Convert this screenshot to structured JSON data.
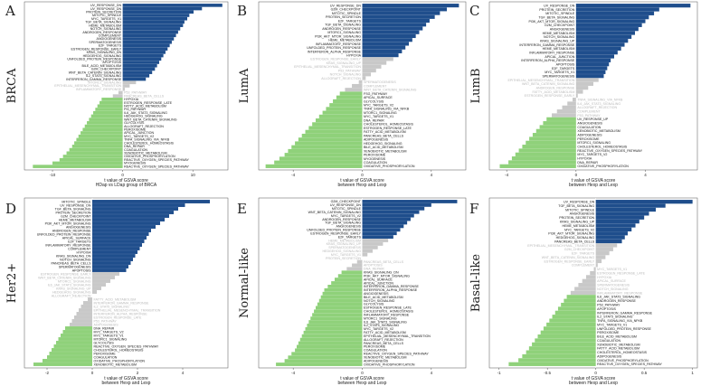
{
  "figure": {
    "colors": {
      "up": "#1f4e8c",
      "down": "#8fd17a",
      "neutral": "#c8c8c8",
      "neutral_text": "#b8b8b8"
    }
  },
  "chart_data": [
    {
      "type": "bar",
      "panel": "A",
      "side_label": "BRCA",
      "xlabel": "t value of GSVA score",
      "xlabel2": "HDap vs LDap group of BRCA",
      "xlim": [
        -14,
        15
      ],
      "xticks": [
        -10,
        0,
        10
      ],
      "up_labels": [
        "UV_RESPONSE_DN",
        "UV_RESPONSE_DN",
        "PROTEIN_SECRETION",
        "MITOTIC_SPINDLE",
        "MYC_TARGETS_V1",
        "TGF_BETA_SIGNALING",
        "HEME_METABOLISM",
        "NOTCH_SIGNALING",
        "ANDROGEN_RESPONSE",
        "COMPLEMENT",
        "ANGIOGENESIS",
        "SPERMATOGENESIS",
        "E2F_TARGETS",
        "ESTROGEN_RESPONSE_EARLY",
        "KRAS_SIGNALING_DN",
        "HEDGEHOG_SIGNALING",
        "UNFOLDED_PROTEIN_RESPONSE",
        "APOPTOSIS",
        "BILE_ACID_METABOLISM",
        "G2M_CHECKPOINT",
        "WNT_BETA_CATENIN_SIGNALING",
        "IL2_STAT5_SIGNALING",
        "INTERFERON_GAMMA_RESPONSE"
      ],
      "up_values": [
        14.2,
        11.3,
        10.1,
        9.5,
        9.2,
        8.8,
        8.6,
        8.2,
        7.9,
        7.6,
        7.3,
        7.0,
        6.7,
        6.4,
        6.1,
        5.8,
        5.5,
        5.2,
        4.9,
        4.6,
        4.2,
        3.8,
        3.3
      ],
      "neutral_labels": [
        "MTORC1_SIGNALING",
        "EPITHELIAL_MESENCHYMAL_TRANSITION",
        "INFLAMMATORY_RESPONSE",
        "P53_PATHWAY",
        "PANCREAS_BETA_CELLS"
      ],
      "neutral_values": [
        1.9,
        1.0,
        0.3,
        -0.6,
        -1.4
      ],
      "down_labels": [
        "HYPOXIA",
        "ESTROGEN_RESPONSE_LATE",
        "FATTY_ACID_METABOLISM",
        "PI3_PATHWAY",
        "IL6_JAK_STAT3_SIGNALING",
        "HEDGEHOG_SIGNALING",
        "WNT_BETA_CATENIN_SIGNALING",
        "GLYCOLYSIS",
        "ALLOGRAFT_REJECTION",
        "PEROXISOME",
        "APICAL_JUNCTION",
        "MYC_TARGETS_V2",
        "TNFA_SIGNALING_VIA_NFKB",
        "CHOLESTEROL_HOMEOSTASIS",
        "DNA_REPAIR",
        "COAGULATION",
        "XENOBIOTIC_METABOLISM",
        "OXIDATIVE_PHOSPHORYLATION",
        "REACTIVE_OXYGEN_SPECIES_PATHWAY",
        "MYOGENESIS",
        "REACTIVE_OXYGEN_SPECIES_PATHWAY"
      ],
      "down_values": [
        -3.0,
        -3.3,
        -3.6,
        -3.9,
        -4.2,
        -4.5,
        -4.8,
        -5.1,
        -5.4,
        -5.7,
        -6.0,
        -6.3,
        -6.6,
        -6.9,
        -7.2,
        -7.6,
        -8.0,
        -8.5,
        -9.0,
        -10.0,
        -12.8
      ]
    },
    {
      "type": "bar",
      "panel": "B",
      "side_label": "LumA",
      "xlabel": "t value of GSVA score",
      "xlabel2": "between Hexp and Lexp",
      "xlim": [
        -6,
        6
      ],
      "xticks": [
        -4,
        0,
        4
      ],
      "up_labels": [
        "UV_RESPONSE_DN",
        "G2M_CHECKPOINT",
        "MITOTIC_SPINDLE",
        "PROTEIN_SECRETION",
        "E2F_TARGETS",
        "TGF_BETA_SIGNALING",
        "ANDROGEN_RESPONSE",
        "MTORC1_SIGNALING",
        "PI3K_AKT_MTOR_SIGNALING",
        "HEME_METABOLISM",
        "INFLAMMATORY_RESPONSE",
        "UNFOLDED_PROTEIN_RESPONSE",
        "INTERFERON_ALPHA_RESPONSE",
        "HYPOXIA"
      ],
      "up_values": [
        5.6,
        4.9,
        4.5,
        4.2,
        3.9,
        3.7,
        3.5,
        3.3,
        3.1,
        2.9,
        2.7,
        2.5,
        2.3,
        2.1
      ],
      "neutral_labels": [
        "ESTROGEN_RESPONSE_EARLY",
        "KRAS_SIGNALING_UP",
        "EPITHELIAL_MESENCHYMAL_TRANSITION",
        "P53_PATHWAY",
        "NOTCH_SIGNALING",
        "ALLOGRAFT_REJECTION",
        "SPERMATOGENESIS",
        "COMPLEMENT",
        "WNT_BETA_CATENIN_SIGNALING"
      ],
      "neutral_values": [
        1.8,
        1.4,
        1.1,
        0.8,
        0.5,
        0.2,
        -0.2,
        -0.6,
        -1.0
      ],
      "down_labels": [
        "FSG_PATHWAY",
        "APICAL_SURFACE",
        "GLYCOLYSIS",
        "MYC_TARGETS_V2",
        "TNFA_SIGNALING_VIA_NFKB",
        "MTORC1_SIGNALING",
        "MYC_TARGETS_V1",
        "DNA_REPAIR",
        "CHOLESTEROL_HOMEOSTASIS",
        "ESTROGEN_RESPONSE_LATE",
        "FATTY_ACID_METABOLISM",
        "PANCREAS_BETA_CELLS",
        "ADIPOGENESIS",
        "HEDGEHOG_SIGNALING",
        "BILE_ACID_METABOLISM",
        "XENOBIOTIC_METABOLISM",
        "PEROXISOME",
        "MYOGENESIS",
        "COAGULATION",
        "OXIDATIVE_PHOSPHORYLATION"
      ],
      "down_values": [
        -1.3,
        -1.5,
        -1.7,
        -1.9,
        -2.1,
        -2.3,
        -2.5,
        -2.7,
        -2.9,
        -3.1,
        -3.3,
        -3.5,
        -3.7,
        -3.9,
        -4.1,
        -4.3,
        -4.5,
        -4.8,
        -5.1,
        -5.6
      ]
    },
    {
      "type": "bar",
      "panel": "C",
      "side_label": "LumB",
      "xlabel": "t value of GSVA score",
      "xlabel2": "between Hexp and Lexp",
      "xlim": [
        -5,
        7
      ],
      "xticks": [
        -4,
        0,
        4
      ],
      "up_labels": [
        "UV_RESPONSE_DN",
        "PROTEIN_SECRETION",
        "MITOTIC_SPINDLE",
        "TGF_BETA_SIGNALING",
        "PI3K_AKT_MTOR_SIGNALING",
        "G2M_CHECKPOINT",
        "ANGIOGENESIS",
        "HEME_METABOLISM",
        "NOTCH_SIGNALING",
        "KRAS_SIGNALING_UP",
        "INTERFERON_GAMMA_RESPONSE",
        "HEME_METABOLISM",
        "INFLAMMATORY_RESPONSE",
        "APICAL_JUNCTION",
        "INTERFERON_ALPHA_RESPONSE",
        "APOPTOSIS",
        "E2F_TARGETS",
        "MYC_TARGETS_V1",
        "SPERMATOGENESIS"
      ],
      "up_values": [
        6.6,
        4.8,
        4.5,
        4.2,
        4.0,
        3.8,
        3.6,
        3.4,
        3.2,
        3.0,
        2.8,
        2.6,
        2.4,
        2.2,
        2.0,
        1.9,
        1.8,
        1.7,
        1.6
      ],
      "neutral_labels": [
        "EPITHELIAL_MESENCHYMAL_TRANSITION",
        "WNT_BETA_CATENIN_SIGNALING",
        "ANDROGEN_RESPONSE",
        "FATTY_ACID_METABOLISM",
        "ESTROGEN_RESPONSE_EARLY",
        "TNFA_SIGNALING_VIA_NFKB",
        "IL6_JAK_STAT3_SIGNALING",
        "ALLOGRAFT_REJECTION",
        "COMPLEMENT",
        "P53_PATHWAY"
      ],
      "neutral_values": [
        1.3,
        1.0,
        0.7,
        0.4,
        0.1,
        -0.2,
        -0.5,
        -0.8,
        -1.1,
        -1.4
      ],
      "down_labels": [
        "UV_RESPONSE_UP",
        "ANGIOGENESIS",
        "COAGULATION",
        "XENOBIOTIC_METABOLISM",
        "ADIPOGENESIS",
        "PEROXISOME",
        "MTORC1_SIGNALING",
        "CHOLESTEROL_HOMEOSTASIS",
        "REACTIVE_OXYGEN_SPECIES_PATHWAY",
        "MYC_TARGETS_V2",
        "HYPOXIA",
        "DNA_REPAIR",
        "OXIDATIVE_PHOSPHORYLATION"
      ],
      "down_values": [
        -1.7,
        -1.9,
        -2.1,
        -2.3,
        -2.5,
        -2.7,
        -2.9,
        -3.1,
        -3.3,
        -3.5,
        -3.7,
        -3.9,
        -4.4
      ]
    },
    {
      "type": "bar",
      "panel": "D",
      "side_label": "Her2+",
      "xlabel": "t value of GSVA score",
      "xlabel2": "between Hexp and Lexp",
      "xlim": [
        -3,
        6
      ],
      "xticks": [
        -2,
        0,
        2,
        4
      ],
      "up_labels": [
        "MITOTIC_SPINDLE",
        "UV_RESPONSE_DN",
        "TGF_BETA_SIGNALING",
        "PROTEIN_SECRETION",
        "G2M_CHECKPOINT",
        "HEME_METABOLISM",
        "PI3K_AKT_MTOR_SIGNALING",
        "ANGIOGENESIS",
        "ANDROGEN_RESPONSE",
        "UNFOLDED_PROTEIN_RESPONSE",
        "APICAL_SURFACE",
        "E2F_TARGETS",
        "INFLAMMATORY_RESPONSE",
        "COMPLEMENT",
        "HYPOXIA",
        "KRAS_SIGNALING_DN",
        "NOTCH_SIGNALING",
        "PANCREAS_BETA_CELLS",
        "SPERMATOGENESIS",
        "APOPTOSIS"
      ],
      "up_values": [
        5.2,
        4.1,
        3.8,
        3.6,
        3.4,
        3.2,
        3.0,
        2.8,
        2.6,
        2.5,
        2.4,
        2.3,
        2.2,
        2.1,
        2.0,
        1.9,
        1.8,
        1.7,
        1.6,
        1.5
      ],
      "neutral_labels": [
        "ESTROGEN_RESPONSE_EARLY",
        "WNT_BETA_CATENIN_SIGNALING",
        "MTORC1_SIGNALING",
        "IL6_JAK_STAT3_SIGNALING",
        "KRAS_SIGNALING_UP",
        "HEDGEHOG_SIGNALING",
        "ALLOGRAFT_REJECTION",
        "FATTY_ACID_METABOLISM",
        "INTERFERON_GAMMA_RESPONSE",
        "IL2_STAT5_SIGNALING",
        "EPITHELIAL_MESENCHYMAL_TRANSITION",
        "INTERFERON_ALPHA_RESPONSE",
        "ESTROGEN_RESPONSE_LATE",
        "P53_PATHWAY",
        "ADIPOGENESIS"
      ],
      "neutral_values": [
        1.2,
        1.0,
        0.8,
        0.6,
        0.4,
        0.2,
        0.0,
        -0.2,
        -0.4,
        -0.5,
        -0.6,
        -0.7,
        -0.8,
        -0.9,
        -1.0
      ],
      "down_labels": [
        "DNA_REPAIR",
        "MYC_TARGETS_V2",
        "MYC_TARGETS_V1",
        "MTORC1_SIGNALING",
        "GLYCOLYSIS",
        "REACTIVE_OXYGEN_SPECIES_PATHWAY",
        "CHOLESTEROL_HOMEOSTASIS",
        "PEROXISOME",
        "COAGULATION",
        "OXIDATIVE_PHOSPHORYLATION",
        "XENOBIOTIC_METABOLISM"
      ],
      "down_values": [
        -1.2,
        -1.3,
        -1.4,
        -1.5,
        -1.6,
        -1.7,
        -1.8,
        -1.9,
        -2.0,
        -2.2,
        -2.6
      ]
    },
    {
      "type": "bar",
      "panel": "E",
      "side_label": "Normal-like",
      "xlabel": "t value of GSVA score",
      "xlabel2": "between Hexp and Lexp",
      "xlim": [
        -6,
        6
      ],
      "xticks": [
        -4,
        0,
        4
      ],
      "up_labels": [
        "G2M_CHECKPOINT",
        "UV_RESPONSE_DN",
        "MITOTIC_SPINDLE",
        "WNT_BETA_CATENIN_SIGNALING",
        "MYC_TARGETS_V2",
        "ANDROGEN_RESPONSE",
        "TGF_BETA_SIGNALING",
        "ANGIOGENESIS",
        "UNFOLDED_PROTEIN_RESPONSE",
        "ESTROGEN_RESPONSE_EARLY",
        "E2F_TARGETS"
      ],
      "up_values": [
        5.5,
        4.0,
        3.6,
        3.3,
        3.0,
        2.8,
        2.6,
        2.4,
        2.2,
        2.0,
        1.8
      ],
      "neutral_labels": [
        "HEME_METABOLISM",
        "KRAS_SIGNALING_UP",
        "SPERMATOGENESIS",
        "HEDGEHOG_SIGNALING",
        "MYC_TARGETS_V1",
        "PROTEIN_SECRETION",
        "PANCREAS_BETA_CELLS",
        "APOPTOSIS",
        "DNA_REPAIR"
      ],
      "neutral_values": [
        1.5,
        1.2,
        0.9,
        0.6,
        0.3,
        0.0,
        -0.3,
        -0.6,
        -0.9
      ],
      "down_labels": [
        "KRAS_SIGNALING_DN",
        "PI3K_AKT_MTOR_SIGNALING",
        "APICAL_SURFACE",
        "APICAL_JUNCTION",
        "INTERFERON_GAMMA_RESPONSE",
        "INTERFERON_ALPHA_RESPONSE",
        "ANGIOGENESIS",
        "BILE_ACID_METABOLISM",
        "NOTCH_SIGNALING",
        "GLYCOLYSIS",
        "ESTROGEN_RESPONSE_LATE",
        "CHOLESTEROL_HOMEOSTASIS",
        "INFLAMMATORY_RESPONSE",
        "MTORC1_SIGNALING",
        "IL6_JAK_STAT3_SIGNALING",
        "IL2_STAT5_SIGNALING",
        "MYC_TARGETS_V2",
        "FATTY_ACID_METABOLISM",
        "EPITHELIAL_MESENCHYMAL_TRANSITION",
        "ALLOGRAFT_REJECTION",
        "PANCREAS_BETA_CELLS",
        "PEROXISOME",
        "COAGULATION",
        "REACTIVE_OXYGEN_SPECIES_PATHWAY",
        "XENOBIOTIC_METABOLISM",
        "ADIPOGENESIS",
        "OXIDATIVE_PHOSPHORYLATION"
      ],
      "down_values": [
        -1.2,
        -1.4,
        -1.6,
        -1.8,
        -2.0,
        -2.2,
        -2.3,
        -2.4,
        -2.5,
        -2.6,
        -2.7,
        -2.8,
        -2.9,
        -3.0,
        -3.1,
        -3.2,
        -3.3,
        -3.4,
        -3.5,
        -3.6,
        -3.7,
        -3.8,
        -3.9,
        -4.1,
        -4.3,
        -4.5,
        -5.0
      ]
    },
    {
      "type": "bar",
      "panel": "F",
      "side_label": "Basal-like",
      "xlabel": "t value of GSVA score",
      "xlabel2": "between Hexp and Lexp",
      "xlim": [
        -1.1,
        1.05
      ],
      "xticks": [
        -1.0,
        -0.5,
        0.0,
        0.5,
        1.0
      ],
      "up_labels": [
        "UV_RESPONSE_DN",
        "TGF_BETA_SIGNALING",
        "MITOTIC_SPINDLE",
        "ANGIOGENESIS",
        "PROTEIN_SECRETION",
        "KRAS_SIGNALING_UP",
        "HEME_METABOLISM",
        "MYC_TARGETS_V2",
        "PI3K_AKT_MTOR_SIGNALING",
        "HEDGEHOG_SIGNALING",
        "PANCREAS_BETA_CELLS"
      ],
      "up_values": [
        1.0,
        0.72,
        0.62,
        0.55,
        0.5,
        0.45,
        0.41,
        0.37,
        0.33,
        0.3,
        0.27
      ],
      "neutral_labels": [
        "EPITHELIAL_MESENCHYMAL_TRANSITION",
        "G2M_CHECKPOINT",
        "E2F_TARGETS",
        "WNT_BETA_CATENIN_SIGNALING",
        "ESTROGEN_RESPONSE_EARLY",
        "COMPLEMENT",
        "MYC_TARGETS_V1",
        "ESTROGEN_RESPONSE_LATE",
        "HYPOXIA",
        "APICAL_SURFACE",
        "SPERMATOGENESIS",
        "NOTCH_SIGNALING",
        "INFLAMMATORY_RESPONSE"
      ],
      "neutral_values": [
        0.22,
        0.18,
        0.14,
        0.1,
        0.06,
        0.02,
        -0.02,
        -0.06,
        -0.1,
        -0.14,
        -0.18,
        -0.22,
        -0.26
      ],
      "down_labels": [
        "IL6_JAK_STAT3_SIGNALING",
        "ANDROGEN_RESPONSE",
        "P53_PATHWAY",
        "APOPTOSIS",
        "INTERFERON_GAMMA_RESPONSE",
        "IL2_STAT5_SIGNALING",
        "TNFA_SIGNALING_VIA_NFKB",
        "MYC_TARGETS_V1",
        "UNFOLDED_PROTEIN_RESPONSE",
        "PEROXISOME",
        "BILE_ACID_METABOLISM",
        "COAGULATION",
        "XENOBIOTIC_METABOLISM",
        "FATTY_ACID_METABOLISM",
        "CHOLESTEROL_HOMEOSTASIS",
        "ADIPOGENESIS",
        "OXIDATIVE_PHOSPHORYLATION",
        "REACTIVE_OXYGEN_SPECIES_PATHWAY"
      ],
      "down_values": [
        -0.3,
        -0.33,
        -0.36,
        -0.39,
        -0.42,
        -0.45,
        -0.48,
        -0.51,
        -0.54,
        -0.57,
        -0.6,
        -0.63,
        -0.66,
        -0.69,
        -0.72,
        -0.76,
        -0.8,
        -0.9
      ]
    }
  ]
}
